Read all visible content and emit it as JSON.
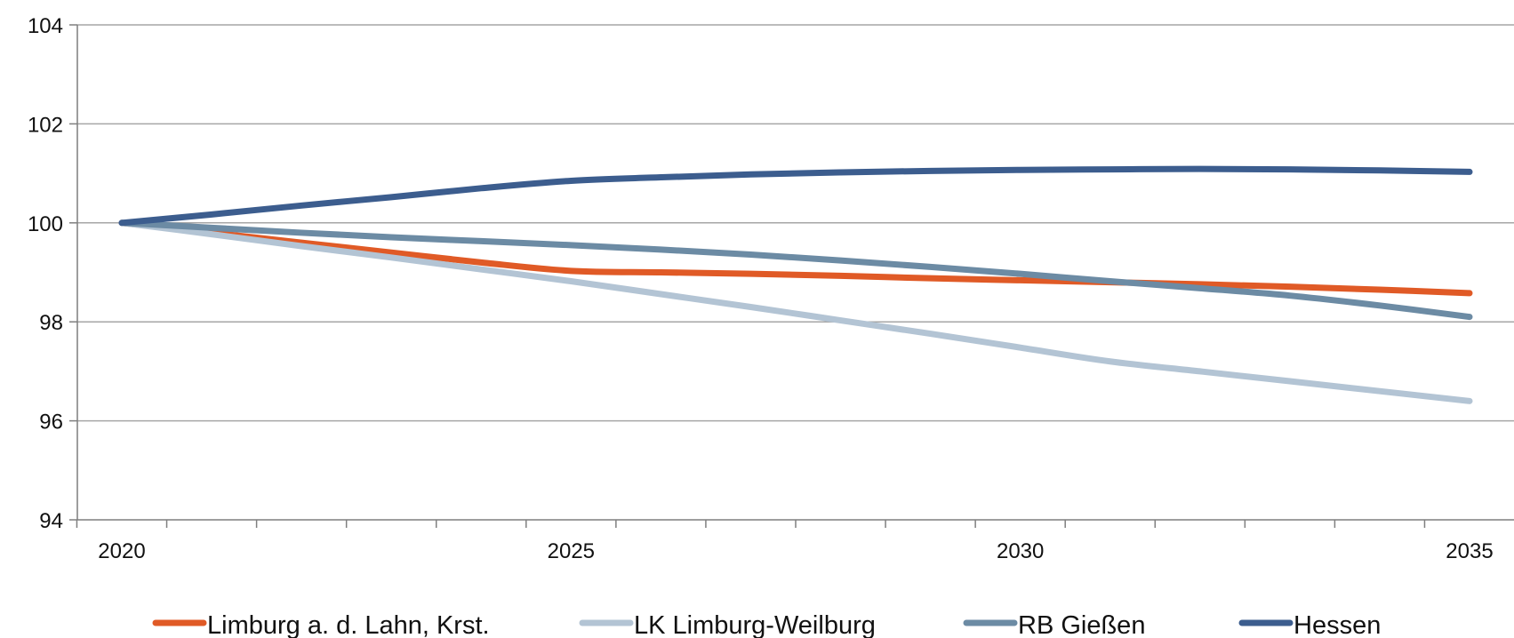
{
  "chart_data": {
    "type": "line",
    "x": [
      2020,
      2021,
      2022,
      2023,
      2024,
      2025,
      2026,
      2027,
      2028,
      2029,
      2030,
      2031,
      2032,
      2033,
      2034,
      2035
    ],
    "x_tick_labels": [
      "2020",
      "2025",
      "2030",
      "2035"
    ],
    "y_tick_labels": [
      "94",
      "96",
      "98",
      "100",
      "102",
      "104"
    ],
    "ylim": [
      94,
      104
    ],
    "grid": "horizontal",
    "legend_position": "bottom",
    "series": [
      {
        "name": "Limburg a. d. Lahn, Krst.",
        "color": "#e05a26",
        "values": [
          100,
          99.8,
          99.6,
          99.4,
          99.2,
          99.03,
          99.0,
          98.97,
          98.93,
          98.88,
          98.84,
          98.8,
          98.76,
          98.71,
          98.65,
          98.58
        ]
      },
      {
        "name": "LK Limburg-Weilburg",
        "color": "#b3c4d4",
        "values": [
          100,
          99.77,
          99.53,
          99.3,
          99.06,
          98.82,
          98.56,
          98.3,
          98.03,
          97.76,
          97.48,
          97.2,
          97.0,
          96.8,
          96.6,
          96.4
        ]
      },
      {
        "name": "RB Gießen",
        "color": "#6c8ba4",
        "values": [
          100,
          99.9,
          99.8,
          99.71,
          99.63,
          99.55,
          99.46,
          99.36,
          99.24,
          99.11,
          98.97,
          98.82,
          98.68,
          98.53,
          98.33,
          98.1
        ]
      },
      {
        "name": "Hessen",
        "color": "#3c5d8e",
        "values": [
          100,
          100.17,
          100.35,
          100.52,
          100.7,
          100.85,
          100.92,
          100.98,
          101.02,
          101.05,
          101.07,
          101.08,
          101.09,
          101.08,
          101.06,
          101.03
        ]
      }
    ]
  }
}
